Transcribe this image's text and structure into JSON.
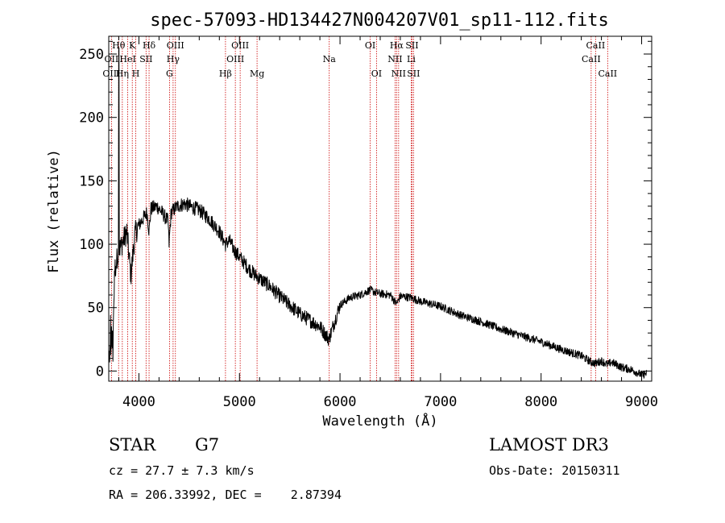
{
  "chart_data": {
    "type": "line",
    "title": "spec-57093-HD134427N004207V01_sp11-112.fits",
    "xlabel": "Wavelength (Å)",
    "ylabel": "Flux (relative)",
    "xlim": [
      3700,
      9100
    ],
    "ylim": [
      -8,
      264
    ],
    "xticks": [
      4000,
      5000,
      6000,
      7000,
      8000,
      9000
    ],
    "xtick_labels": [
      "4000",
      "5000",
      "6000",
      "7000",
      "8000",
      "9000"
    ],
    "yticks": [
      0,
      50,
      100,
      150,
      200,
      250
    ],
    "ytick_labels": [
      "0",
      "50",
      "100",
      "150",
      "200",
      "250"
    ],
    "spectrum_anchor_points": {
      "wavelength": [
        3700,
        3740,
        3760,
        3800,
        3830,
        3880,
        3920,
        3960,
        4000,
        4040,
        4080,
        4101,
        4120,
        4180,
        4230,
        4290,
        4300,
        4320,
        4380,
        4460,
        4500,
        4600,
        4700,
        4800,
        4861,
        4900,
        4950,
        5000,
        5100,
        5167,
        5200,
        5300,
        5400,
        5500,
        5600,
        5700,
        5800,
        5890,
        5950,
        6000,
        6100,
        6200,
        6300,
        6350,
        6400,
        6500,
        6563,
        6600,
        6700,
        6800,
        6900,
        7000,
        7200,
        7400,
        7600,
        7800,
        8000,
        8200,
        8400,
        8498,
        8542,
        8600,
        8662,
        8700,
        8800,
        8900,
        9000,
        9050
      ],
      "flux": [
        10,
        25,
        80,
        95,
        100,
        110,
        75,
        108,
        115,
        120,
        125,
        110,
        128,
        130,
        125,
        118,
        100,
        125,
        130,
        132,
        130,
        127,
        120,
        110,
        100,
        103,
        95,
        90,
        80,
        75,
        73,
        67,
        59,
        52,
        45,
        40,
        35,
        25,
        40,
        52,
        58,
        60,
        64,
        62,
        61,
        60,
        53,
        59,
        58,
        55,
        53,
        51,
        44,
        39,
        33,
        28,
        23,
        17,
        12,
        7,
        6,
        8,
        5,
        7,
        3,
        1,
        -3,
        -2
      ]
    },
    "series": [
      {
        "name": "spectrum",
        "noise_amplitude": 3.2
      }
    ],
    "spectral_lines": [
      {
        "label": "Hθ",
        "wavelength": 3798,
        "row": 1
      },
      {
        "label": "OII",
        "wavelength": 3727,
        "row": 2
      },
      {
        "label": "OIII",
        "wavelength": 3727,
        "row": 3
      },
      {
        "label": "K",
        "wavelength": 3934,
        "row": 1
      },
      {
        "label": "Hη",
        "wavelength": 3835,
        "row": 3
      },
      {
        "label": "HeI",
        "wavelength": 3889,
        "row": 2
      },
      {
        "label": "SII",
        "wavelength": 4071,
        "row": 2
      },
      {
        "label": "H",
        "wavelength": 3969,
        "row": 3
      },
      {
        "label": "Hδ",
        "wavelength": 4101,
        "row": 1
      },
      {
        "label": "OIII",
        "wavelength": 4363,
        "row": 1
      },
      {
        "label": "Hγ",
        "wavelength": 4340,
        "row": 2
      },
      {
        "label": "G",
        "wavelength": 4304,
        "row": 3
      },
      {
        "label": "OIII",
        "wavelength": 5007,
        "row": 1
      },
      {
        "label": "OIII",
        "wavelength": 4959,
        "row": 2
      },
      {
        "label": "Hβ",
        "wavelength": 4861,
        "row": 3
      },
      {
        "label": "Mg",
        "wavelength": 5175,
        "row": 3
      },
      {
        "label": "Na",
        "wavelength": 5893,
        "row": 2
      },
      {
        "label": "OI",
        "wavelength": 6300,
        "row": 1
      },
      {
        "label": "OI",
        "wavelength": 6363,
        "row": 3
      },
      {
        "label": "Hα",
        "wavelength": 6563,
        "row": 1
      },
      {
        "label": "SII",
        "wavelength": 6716,
        "row": 1
      },
      {
        "label": "NII",
        "wavelength": 6548,
        "row": 2
      },
      {
        "label": "Li",
        "wavelength": 6708,
        "row": 2
      },
      {
        "label": "NII",
        "wavelength": 6583,
        "row": 3
      },
      {
        "label": "SII",
        "wavelength": 6731,
        "row": 3
      },
      {
        "label": "CaII",
        "wavelength": 8542,
        "row": 1
      },
      {
        "label": "CaII",
        "wavelength": 8498,
        "row": 2
      },
      {
        "label": "CaII",
        "wavelength": 8662,
        "row": 3
      }
    ],
    "line_color": "#000000",
    "marker_color": "#cc0000"
  },
  "info": {
    "object_class": "STAR",
    "subclass": "G7",
    "survey": "LAMOST DR3",
    "redshift": "cz = 27.7 ± 7.3 km/s",
    "obs_date": "Obs-Date: 20150311",
    "coords": "RA = 206.33992, DEC =    2.87394"
  }
}
